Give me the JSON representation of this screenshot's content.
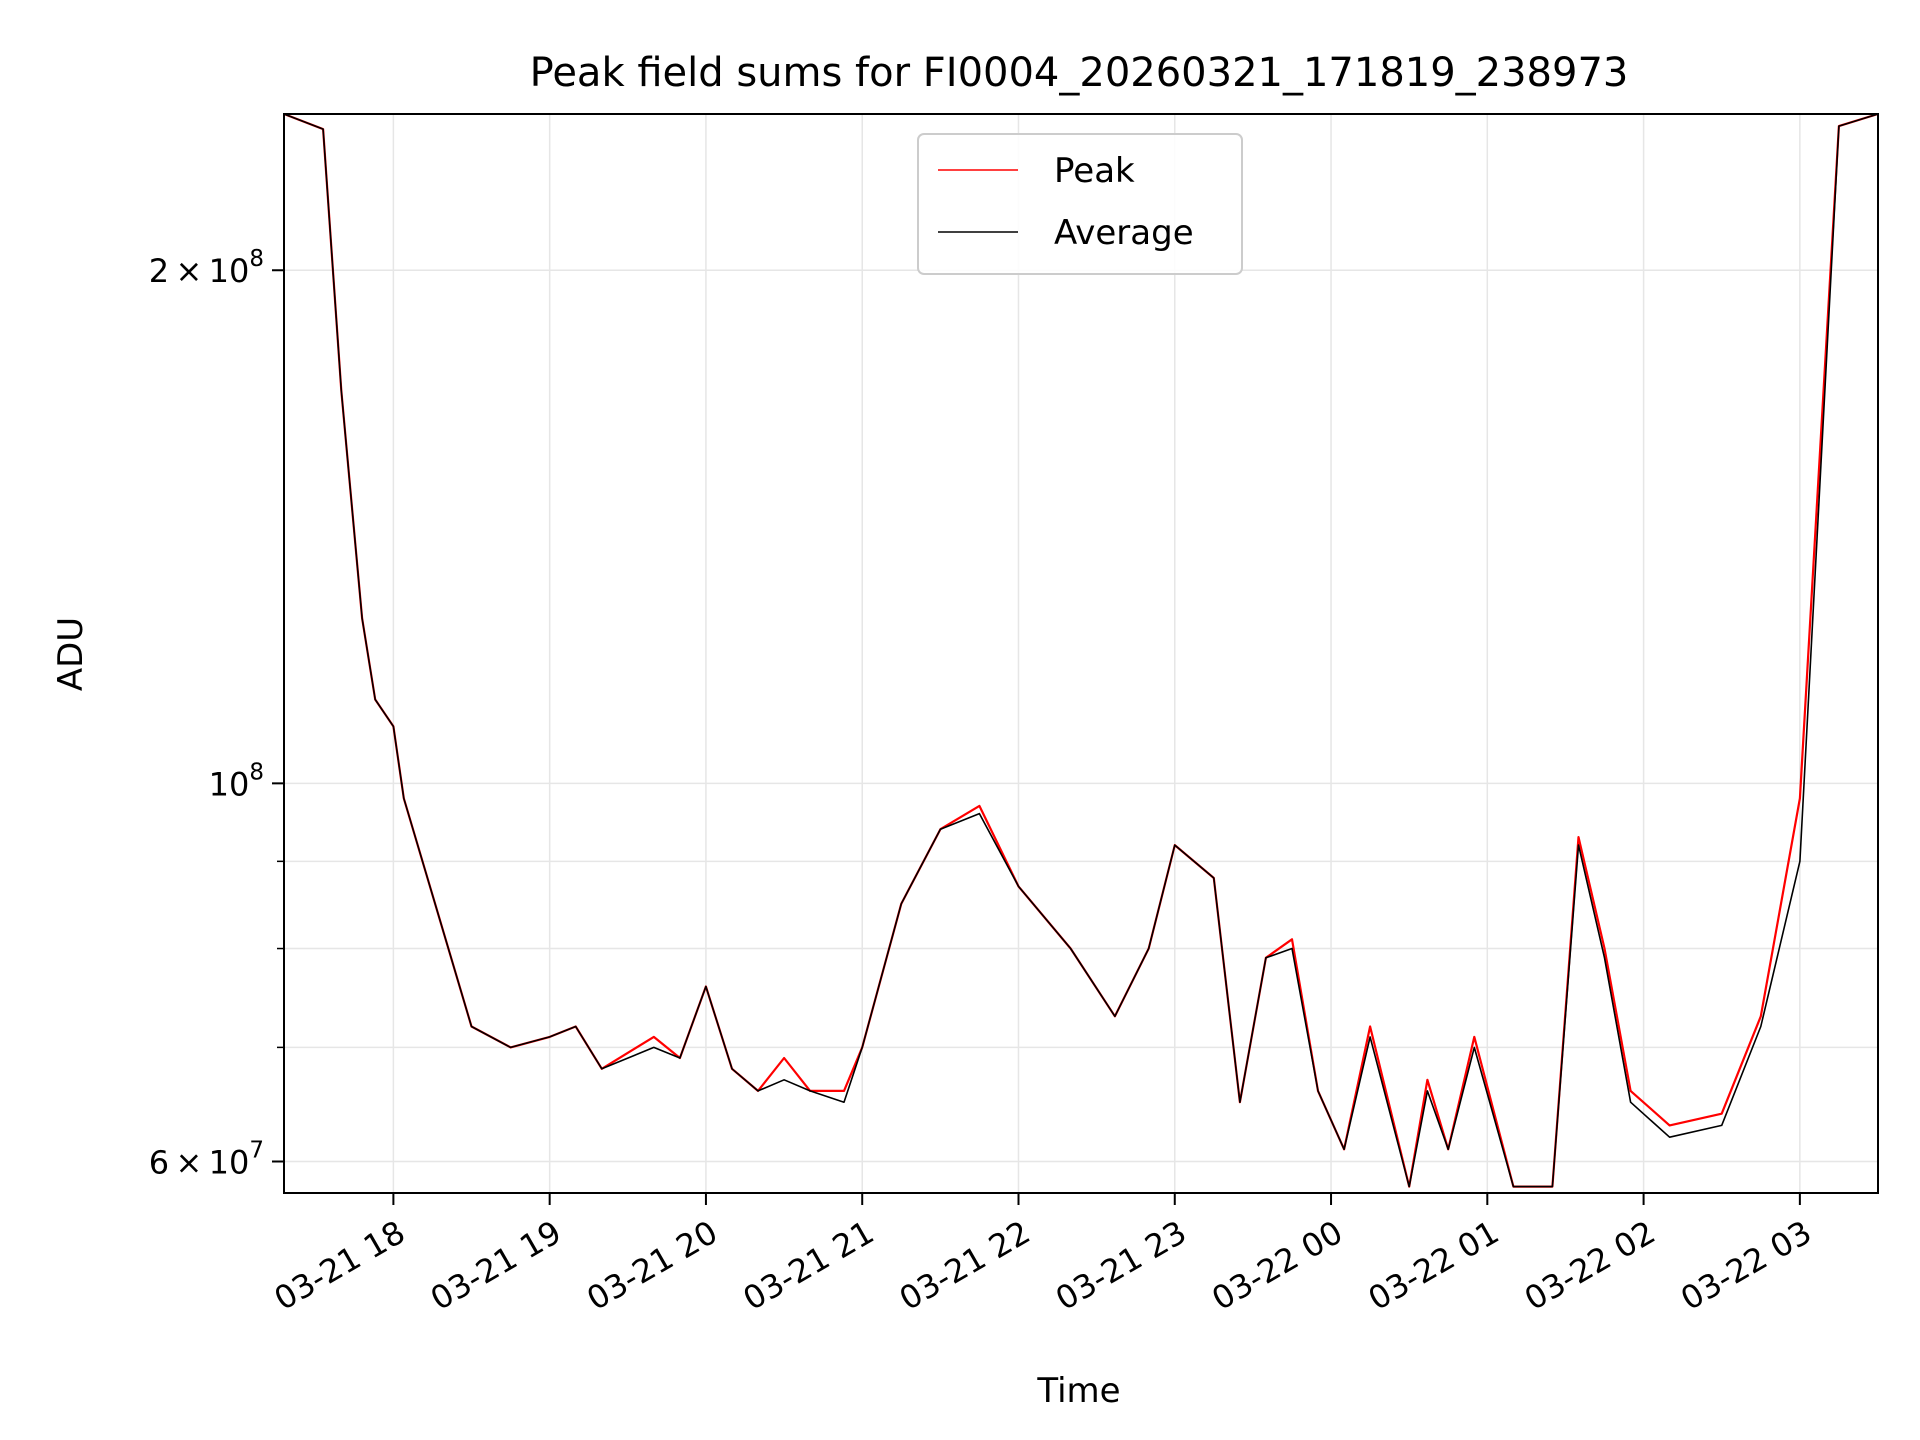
{
  "chart_data": {
    "type": "line",
    "title": "Peak field sums for FI0004_20260321_171819_238973",
    "xlabel": "Time",
    "ylabel": "ADU",
    "yscale": "log",
    "ylim": [
      57500000,
      247000000
    ],
    "xlim": [
      "2026-03-21T17:18",
      "2026-03-22T03:30"
    ],
    "grid": true,
    "legend_position": "top-center",
    "x_ticks": [
      "03-21 18",
      "03-21 19",
      "03-21 20",
      "03-21 21",
      "03-21 22",
      "03-21 23",
      "03-22 00",
      "03-22 01",
      "03-22 02",
      "03-22 03"
    ],
    "y_ticks": [
      {
        "value": 60000000,
        "mantissa": "6",
        "exponent": "7"
      },
      {
        "value": 100000000,
        "mantissa": "",
        "exponent": "8"
      },
      {
        "value": 200000000,
        "mantissa": "2",
        "exponent": "8"
      }
    ],
    "x": [
      "2026-03-21T17:18",
      "2026-03-21T17:33",
      "2026-03-21T17:40",
      "2026-03-21T17:48",
      "2026-03-21T17:53",
      "2026-03-21T18:00",
      "2026-03-21T18:04",
      "2026-03-21T18:15",
      "2026-03-21T18:30",
      "2026-03-21T18:45",
      "2026-03-21T19:00",
      "2026-03-21T19:10",
      "2026-03-21T19:20",
      "2026-03-21T19:40",
      "2026-03-21T19:50",
      "2026-03-21T20:00",
      "2026-03-21T20:10",
      "2026-03-21T20:20",
      "2026-03-21T20:30",
      "2026-03-21T20:40",
      "2026-03-21T20:53",
      "2026-03-21T21:00",
      "2026-03-21T21:15",
      "2026-03-21T21:30",
      "2026-03-21T21:45",
      "2026-03-21T22:00",
      "2026-03-21T22:20",
      "2026-03-21T22:37",
      "2026-03-21T22:50",
      "2026-03-21T23:00",
      "2026-03-21T23:15",
      "2026-03-21T23:25",
      "2026-03-21T23:35",
      "2026-03-21T23:45",
      "2026-03-21T23:55",
      "2026-03-22T00:05",
      "2026-03-22T00:15",
      "2026-03-22T00:30",
      "2026-03-22T00:37",
      "2026-03-22T00:45",
      "2026-03-22T00:55",
      "2026-03-22T01:10",
      "2026-03-22T01:25",
      "2026-03-22T01:35",
      "2026-03-22T01:45",
      "2026-03-22T01:55",
      "2026-03-22T02:10",
      "2026-03-22T02:30",
      "2026-03-22T02:45",
      "2026-03-22T03:00",
      "2026-03-22T03:15",
      "2026-03-22T03:30"
    ],
    "series": [
      {
        "name": "Peak",
        "color": "#ff0000",
        "values": [
          247000000,
          242000000,
          170000000,
          125000000,
          112000000,
          108000000,
          98000000,
          86000000,
          72000000,
          70000000,
          71000000,
          72000000,
          68000000,
          71000000,
          69000000,
          76000000,
          68000000,
          66000000,
          69000000,
          66000000,
          66000000,
          70000000,
          85000000,
          94000000,
          97000000,
          87000000,
          80000000,
          73000000,
          80000000,
          92000000,
          88000000,
          65000000,
          79000000,
          81000000,
          66000000,
          61000000,
          72000000,
          58000000,
          67000000,
          61000000,
          71000000,
          58000000,
          58000000,
          93000000,
          80000000,
          66000000,
          63000000,
          64000000,
          73000000,
          98000000,
          243000000,
          247000000
        ]
      },
      {
        "name": "Average",
        "color": "#000000",
        "values": [
          247000000,
          242000000,
          170000000,
          125000000,
          112000000,
          108000000,
          98000000,
          86000000,
          72000000,
          70000000,
          71000000,
          72000000,
          68000000,
          70000000,
          69000000,
          76000000,
          68000000,
          66000000,
          67000000,
          66000000,
          65000000,
          70000000,
          85000000,
          94000000,
          96000000,
          87000000,
          80000000,
          73000000,
          80000000,
          92000000,
          88000000,
          65000000,
          79000000,
          80000000,
          66000000,
          61000000,
          71000000,
          58000000,
          66000000,
          61000000,
          70000000,
          58000000,
          58000000,
          92000000,
          79000000,
          65000000,
          62000000,
          63000000,
          72000000,
          90000000,
          243000000,
          247000000
        ]
      }
    ]
  }
}
